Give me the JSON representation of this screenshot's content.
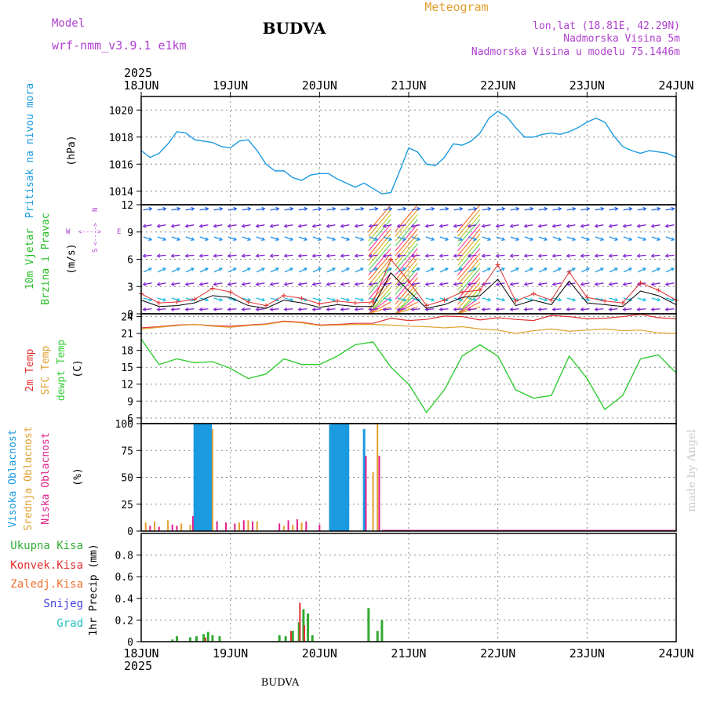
{
  "header": {
    "model_label": "Model",
    "model_name": "wrf-nmm_v3.9.1 e1km",
    "title": "BUDVA",
    "meteogram": "Meteogram",
    "lonlat": "lon,lat (18.81E, 42.29N)",
    "elevation": "Nadmorska Visina 5m",
    "model_elevation": "Nadmorska Visina u modelu 75.1446m",
    "watermark": "made by Angel",
    "footer_title": "BUDVA"
  },
  "colors": {
    "pressure": "#1a9ae0",
    "wind_label": "#22bb22",
    "t2m": "#e03030",
    "sfc": "#e0a030",
    "dewpoint": "#33cc33",
    "high_cloud": "#1a9ae0",
    "mid_cloud": "#e0a030",
    "low_cloud": "#e0208a",
    "total_precip": "#33aa33",
    "convective": "#e03030",
    "frozen": "#f07030",
    "snow": "#4040e0",
    "hail": "#20c0c0",
    "title_purple": "#b040d0",
    "meteogram_orange": "#e0a030",
    "grid": "#888888",
    "watermark": "#cccccc"
  },
  "chart_data": [
    {
      "type": "line",
      "panel": "pressure",
      "ylabel_colored": "Pritisak na nivou mora",
      "unit": "(hPa)",
      "ylim": [
        1013,
        1021
      ],
      "yticks": [
        "1014",
        "1016",
        "1018",
        "1020"
      ],
      "ytick_values": [
        1014,
        1016,
        1018,
        1020
      ],
      "x": [
        0,
        0.1,
        0.2,
        0.3,
        0.4,
        0.5,
        0.6,
        0.7,
        0.8,
        0.9,
        1.0,
        1.1,
        1.2,
        1.3,
        1.4,
        1.5,
        1.6,
        1.7,
        1.8,
        1.9,
        2.0,
        2.1,
        2.2,
        2.3,
        2.4,
        2.5,
        2.6,
        2.7,
        2.8,
        2.9,
        3.0,
        3.1,
        3.2,
        3.3,
        3.4,
        3.5,
        3.6,
        3.7,
        3.8,
        3.9,
        4.0,
        4.1,
        4.2,
        4.3,
        4.4,
        4.5,
        4.6,
        4.7,
        4.8,
        4.9,
        5.0,
        5.1,
        5.2,
        5.3,
        5.4,
        5.5,
        5.6,
        5.7,
        5.8,
        5.9,
        6.0
      ],
      "series": [
        {
          "values": [
            1017.0,
            1016.5,
            1016.8,
            1017.5,
            1018.4,
            1018.3,
            1017.8,
            1017.7,
            1017.6,
            1017.3,
            1017.2,
            1017.7,
            1017.8,
            1017.0,
            1016.0,
            1015.5,
            1015.5,
            1015.0,
            1014.8,
            1015.2,
            1015.3,
            1015.3,
            1014.9,
            1014.6,
            1014.3,
            1014.6,
            1014.2,
            1013.8,
            1013.9,
            1015.5,
            1017.2,
            1016.9,
            1016.0,
            1015.9,
            1016.5,
            1017.5,
            1017.4,
            1017.7,
            1018.3,
            1019.4,
            1019.9,
            1019.5,
            1018.7,
            1018.0,
            1018.0,
            1018.2,
            1018.3,
            1018.2,
            1018.4,
            1018.7,
            1019.1,
            1019.4,
            1019.1,
            1018.1,
            1017.3,
            1017.0,
            1016.8,
            1017.0,
            1016.9,
            1016.8,
            1016.5
          ]
        }
      ]
    },
    {
      "type": "wind",
      "panel": "wind",
      "label_line1": "10m Vjetar",
      "label_line2": "Brzina i Pravac",
      "unit": "(m/s)",
      "compass": [
        "W",
        "<---->",
        "E",
        "S",
        "<---->",
        "N"
      ],
      "ylim": [
        0,
        12
      ],
      "yticks": [
        "0",
        "3",
        "6",
        "9",
        "12"
      ],
      "ytick_values": [
        0,
        3,
        6,
        9,
        12
      ],
      "speed_x": [
        0,
        0.2,
        0.4,
        0.6,
        0.8,
        1.0,
        1.2,
        1.4,
        1.6,
        1.8,
        2.0,
        2.2,
        2.4,
        2.6,
        2.8,
        3.0,
        3.2,
        3.4,
        3.6,
        3.8,
        4.0,
        4.2,
        4.4,
        4.6,
        4.8,
        5.0,
        5.2,
        5.4,
        5.6,
        5.8,
        6.0
      ],
      "speed": [
        1.5,
        0.8,
        0.9,
        1.2,
        2.0,
        1.8,
        0.9,
        0.6,
        1.5,
        1.2,
        0.7,
        1.0,
        0.8,
        0.8,
        4.5,
        2.5,
        0.6,
        1.0,
        1.8,
        2.0,
        3.8,
        0.9,
        1.5,
        1.0,
        3.6,
        1.2,
        1.0,
        0.8,
        2.5,
        2.0,
        1.0
      ],
      "gust": [
        2.2,
        1.2,
        1.3,
        1.6,
        2.8,
        2.4,
        1.3,
        0.9,
        2.0,
        1.7,
        1.1,
        1.4,
        1.2,
        1.3,
        6.0,
        3.6,
        0.9,
        1.5,
        2.4,
        2.6,
        5.4,
        1.4,
        2.2,
        1.5,
        4.6,
        1.8,
        1.4,
        1.2,
        3.4,
        2.6,
        1.5
      ]
    },
    {
      "type": "line",
      "panel": "temperature",
      "labels": [
        "2m Temp",
        "SFC Temp",
        "dewpt Temp"
      ],
      "unit": "(C)",
      "ylim": [
        5,
        24.5
      ],
      "yticks": [
        "6",
        "9",
        "12",
        "15",
        "18",
        "21",
        "24"
      ],
      "ytick_values": [
        6,
        9,
        12,
        15,
        18,
        21,
        24
      ],
      "x": [
        0,
        0.2,
        0.4,
        0.6,
        0.8,
        1.0,
        1.2,
        1.4,
        1.6,
        1.8,
        2.0,
        2.2,
        2.4,
        2.6,
        2.8,
        3.0,
        3.2,
        3.4,
        3.6,
        3.8,
        4.0,
        4.2,
        4.4,
        4.6,
        4.8,
        5.0,
        5.2,
        5.4,
        5.6,
        5.8,
        6.0
      ],
      "series": [
        {
          "name": "2m Temp",
          "values": [
            22.0,
            22.2,
            22.5,
            22.6,
            22.4,
            22.3,
            22.5,
            22.7,
            23.2,
            23.0,
            22.5,
            22.6,
            22.8,
            22.8,
            23.7,
            23.3,
            23.5,
            24.1,
            24.0,
            23.4,
            23.8,
            23.5,
            23.3,
            24.2,
            24.0,
            23.6,
            23.7,
            24.0,
            24.4,
            23.8,
            23.6
          ]
        },
        {
          "name": "SFC Temp",
          "values": [
            21.8,
            22.1,
            22.4,
            22.6,
            22.3,
            22.1,
            22.4,
            22.6,
            23.1,
            22.9,
            22.4,
            22.5,
            22.6,
            22.6,
            22.5,
            22.3,
            22.2,
            22.0,
            22.2,
            21.8,
            21.6,
            21.0,
            21.5,
            21.8,
            21.4,
            21.6,
            21.8,
            21.5,
            21.6,
            21.1,
            21.0
          ]
        },
        {
          "name": "dewpt Temp",
          "values": [
            20.0,
            15.5,
            16.5,
            15.8,
            16.0,
            14.8,
            13.0,
            13.8,
            16.5,
            15.5,
            15.5,
            17.0,
            19.0,
            19.5,
            15.0,
            12.0,
            7.0,
            11.0,
            17.0,
            19.0,
            17.0,
            11.0,
            9.5,
            10.0,
            17.0,
            13.0,
            7.5,
            10.0,
            16.5,
            17.2,
            14.0
          ]
        }
      ]
    },
    {
      "type": "bar",
      "panel": "cloud",
      "labels": [
        "Visoka Oblacnost",
        "Srednja Oblacnost",
        "Niska Oblacnost"
      ],
      "unit": "(%)",
      "ylim": [
        0,
        100
      ],
      "yticks": [
        "0",
        "25",
        "50",
        "75",
        "100"
      ],
      "ytick_values": [
        0,
        25,
        50,
        75,
        100
      ],
      "high_x": [
        0.6,
        0.62,
        0.64,
        0.66,
        0.68,
        0.7,
        0.72,
        0.74,
        0.76,
        0.78,
        2.12,
        2.14,
        2.16,
        2.18,
        2.2,
        2.22,
        2.24,
        2.26,
        2.28,
        2.3,
        2.32,
        2.5
      ],
      "high_v": [
        100,
        100,
        100,
        100,
        100,
        100,
        100,
        100,
        100,
        100,
        99,
        100,
        100,
        100,
        100,
        100,
        100,
        100,
        100,
        100,
        100,
        95
      ],
      "mid_x": [
        0.05,
        0.15,
        0.3,
        0.45,
        0.55,
        0.8,
        1.1,
        1.2,
        1.3,
        1.6,
        1.7,
        1.8,
        2.6,
        2.65
      ],
      "mid_v": [
        8,
        9,
        10,
        7,
        6,
        95,
        8,
        10,
        9,
        5,
        6,
        8,
        55,
        100
      ],
      "low_x": [
        0.1,
        0.2,
        0.35,
        0.4,
        0.58,
        0.85,
        0.95,
        1.05,
        1.15,
        1.25,
        1.55,
        1.65,
        1.75,
        1.85,
        2.0,
        2.52,
        2.67
      ],
      "low_v": [
        5,
        4,
        6,
        5,
        14,
        9,
        8,
        7,
        10,
        9,
        7,
        10,
        11,
        9,
        6,
        70,
        70
      ]
    },
    {
      "type": "bar",
      "panel": "precip",
      "labels": [
        "Ukupna Kisa",
        "Konvek.Kisa",
        "Zaledj.Kisa",
        "Snijeg",
        "Grad"
      ],
      "unit": "1hr Precip (mm)",
      "ylim": [
        0,
        1.0
      ],
      "yticks": [
        "0",
        "0.2",
        "0.4",
        "0.6",
        "0.8"
      ],
      "ytick_values": [
        0,
        0.2,
        0.4,
        0.6,
        0.8
      ],
      "total_x": [
        0.35,
        0.4,
        0.55,
        0.62,
        0.7,
        0.75,
        0.8,
        0.88,
        1.55,
        1.62,
        1.7,
        1.77,
        1.82,
        1.87,
        1.92,
        2.55,
        2.65,
        2.7
      ],
      "total_v": [
        0.02,
        0.05,
        0.04,
        0.05,
        0.07,
        0.09,
        0.06,
        0.05,
        0.06,
        0.05,
        0.1,
        0.18,
        0.3,
        0.26,
        0.06,
        0.31,
        0.1,
        0.2
      ],
      "conv_x": [
        0.72,
        1.68,
        1.78,
        1.83
      ],
      "conv_v": [
        0.04,
        0.1,
        0.36,
        0.15
      ]
    }
  ],
  "axis": {
    "top_year": "2025",
    "bottom_year": "2025",
    "days": [
      "18JUN",
      "19JUN",
      "20JUN",
      "21JUN",
      "22JUN",
      "23JUN",
      "24JUN"
    ]
  }
}
